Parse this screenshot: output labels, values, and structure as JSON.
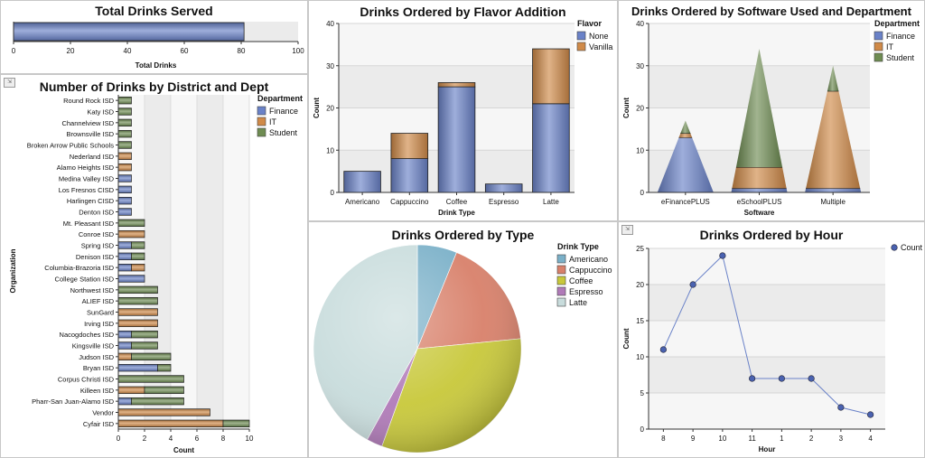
{
  "colors": {
    "finance": "#6a82c8",
    "it": "#d08a48",
    "student": "#6e8c52",
    "none": "#6a82c8",
    "vanilla": "#d08a48",
    "americano": "#7ab0c8",
    "cappuccino": "#d8806a",
    "coffee": "#c8c83a",
    "espresso": "#b07ab8",
    "latte": "#c8dcdc",
    "count": "#6a82c8",
    "plotbg": "#ebebeb"
  },
  "panels": {
    "total": {
      "title": "Total Drinks Served"
    },
    "district": {
      "title": "Number of Drinks by District and Dept"
    },
    "flavor": {
      "title": "Drinks Ordered by Flavor Addition"
    },
    "software": {
      "title": "Drinks Ordered by Software Used and Department"
    },
    "type": {
      "title": "Drinks Ordered by Type"
    },
    "hour": {
      "title": "Drinks Ordered by Hour"
    }
  },
  "chart_data": [
    {
      "id": "total",
      "type": "bar",
      "orientation": "horizontal",
      "title": "Total Drinks Served",
      "xlabel": "Total Drinks",
      "values": [
        81
      ],
      "xlim": [
        0,
        100
      ],
      "ticks": [
        0,
        20,
        40,
        60,
        80,
        100
      ]
    },
    {
      "id": "district",
      "type": "bar",
      "stacked": true,
      "orientation": "horizontal",
      "title": "Number of Drinks by District and Dept",
      "xlabel": "Count",
      "ylabel": "Organization",
      "xlim": [
        0,
        10
      ],
      "ticks": [
        0,
        2,
        4,
        6,
        8,
        10
      ],
      "legend_title": "Department",
      "legend_position": "top-right",
      "categories": [
        "Round Rock ISD",
        "Katy ISD",
        "Channelview ISD",
        "Brownsville ISD",
        "Broken Arrow Public Schools",
        "Nederland ISD",
        "Alamo Heights ISD",
        "Medina Valley ISD",
        "Los Fresnos CISD",
        "Harlingen CISD",
        "Denton ISD",
        "Mt. Pleasant ISD",
        "Conroe ISD",
        "Spring ISD",
        "Denison ISD",
        "Columbia-Brazoria ISD",
        "College Station ISD",
        "Northwest ISD",
        "ALIEF ISD",
        "SunGard",
        "Irving ISD",
        "Nacogdoches ISD",
        "Kingsville ISD",
        "Judson ISD",
        "Bryan ISD",
        "Corpus Christi ISD",
        "Killeen ISD",
        "Pharr-San Juan-Alamo ISD",
        "Vendor",
        "Cyfair ISD"
      ],
      "series": [
        {
          "name": "Finance",
          "values": [
            0,
            0,
            0,
            0,
            0,
            0,
            0,
            1,
            1,
            1,
            1,
            0,
            0,
            1,
            1,
            1,
            2,
            0,
            0,
            0,
            0,
            1,
            1,
            0,
            3,
            0,
            0,
            1,
            0,
            0
          ]
        },
        {
          "name": "IT",
          "values": [
            0,
            0,
            0,
            0,
            0,
            1,
            1,
            0,
            0,
            0,
            0,
            0,
            2,
            0,
            0,
            1,
            0,
            0,
            0,
            3,
            3,
            0,
            0,
            1,
            0,
            0,
            2,
            0,
            7,
            8
          ]
        },
        {
          "name": "Student",
          "values": [
            1,
            1,
            1,
            1,
            1,
            0,
            0,
            0,
            0,
            0,
            0,
            2,
            0,
            1,
            1,
            0,
            0,
            3,
            3,
            0,
            0,
            2,
            2,
            3,
            1,
            5,
            3,
            4,
            0,
            2
          ]
        }
      ]
    },
    {
      "id": "flavor",
      "type": "bar",
      "stacked": true,
      "title": "Drinks Ordered by Flavor Addition",
      "xlabel": "Drink Type",
      "ylabel": "Count",
      "ylim": [
        0,
        40
      ],
      "ticks": [
        0,
        10,
        20,
        30,
        40
      ],
      "legend_title": "Flavor",
      "legend_position": "right",
      "categories": [
        "Americano",
        "Cappuccino",
        "Coffee",
        "Espresso",
        "Latte"
      ],
      "series": [
        {
          "name": "None",
          "values": [
            5,
            8,
            25,
            2,
            21
          ]
        },
        {
          "name": "Vanilla",
          "values": [
            0,
            6,
            1,
            0,
            13
          ]
        }
      ]
    },
    {
      "id": "software",
      "type": "bar",
      "stacked": true,
      "shape": "cone",
      "title": "Drinks Ordered by Software Used and Department",
      "xlabel": "Software",
      "ylabel": "Count",
      "ylim": [
        0,
        40
      ],
      "ticks": [
        0,
        10,
        20,
        30,
        40
      ],
      "legend_title": "Department",
      "legend_position": "right",
      "categories": [
        "eFinancePLUS",
        "eSchoolPLUS",
        "Multiple"
      ],
      "series": [
        {
          "name": "Finance",
          "values": [
            13,
            1,
            1
          ]
        },
        {
          "name": "IT",
          "values": [
            1,
            5,
            23
          ]
        },
        {
          "name": "Student",
          "values": [
            3,
            28,
            6
          ]
        }
      ]
    },
    {
      "id": "type",
      "type": "pie",
      "title": "Drinks Ordered by Type",
      "legend_title": "Drink Type",
      "legend_position": "right",
      "categories": [
        "Americano",
        "Cappuccino",
        "Coffee",
        "Espresso",
        "Latte"
      ],
      "values": [
        5,
        14,
        26,
        2,
        34
      ]
    },
    {
      "id": "hour",
      "type": "line",
      "title": "Drinks Ordered by Hour",
      "xlabel": "Hour",
      "ylabel": "Count",
      "x": [
        "8",
        "9",
        "10",
        "11",
        "1",
        "2",
        "3",
        "4"
      ],
      "y": [
        11,
        20,
        24,
        7,
        7,
        7,
        3,
        2
      ],
      "ylim": [
        0,
        25
      ],
      "ticks": [
        0,
        5,
        10,
        15,
        20,
        25
      ],
      "legend": [
        "Count"
      ],
      "legend_position": "top-right"
    }
  ]
}
